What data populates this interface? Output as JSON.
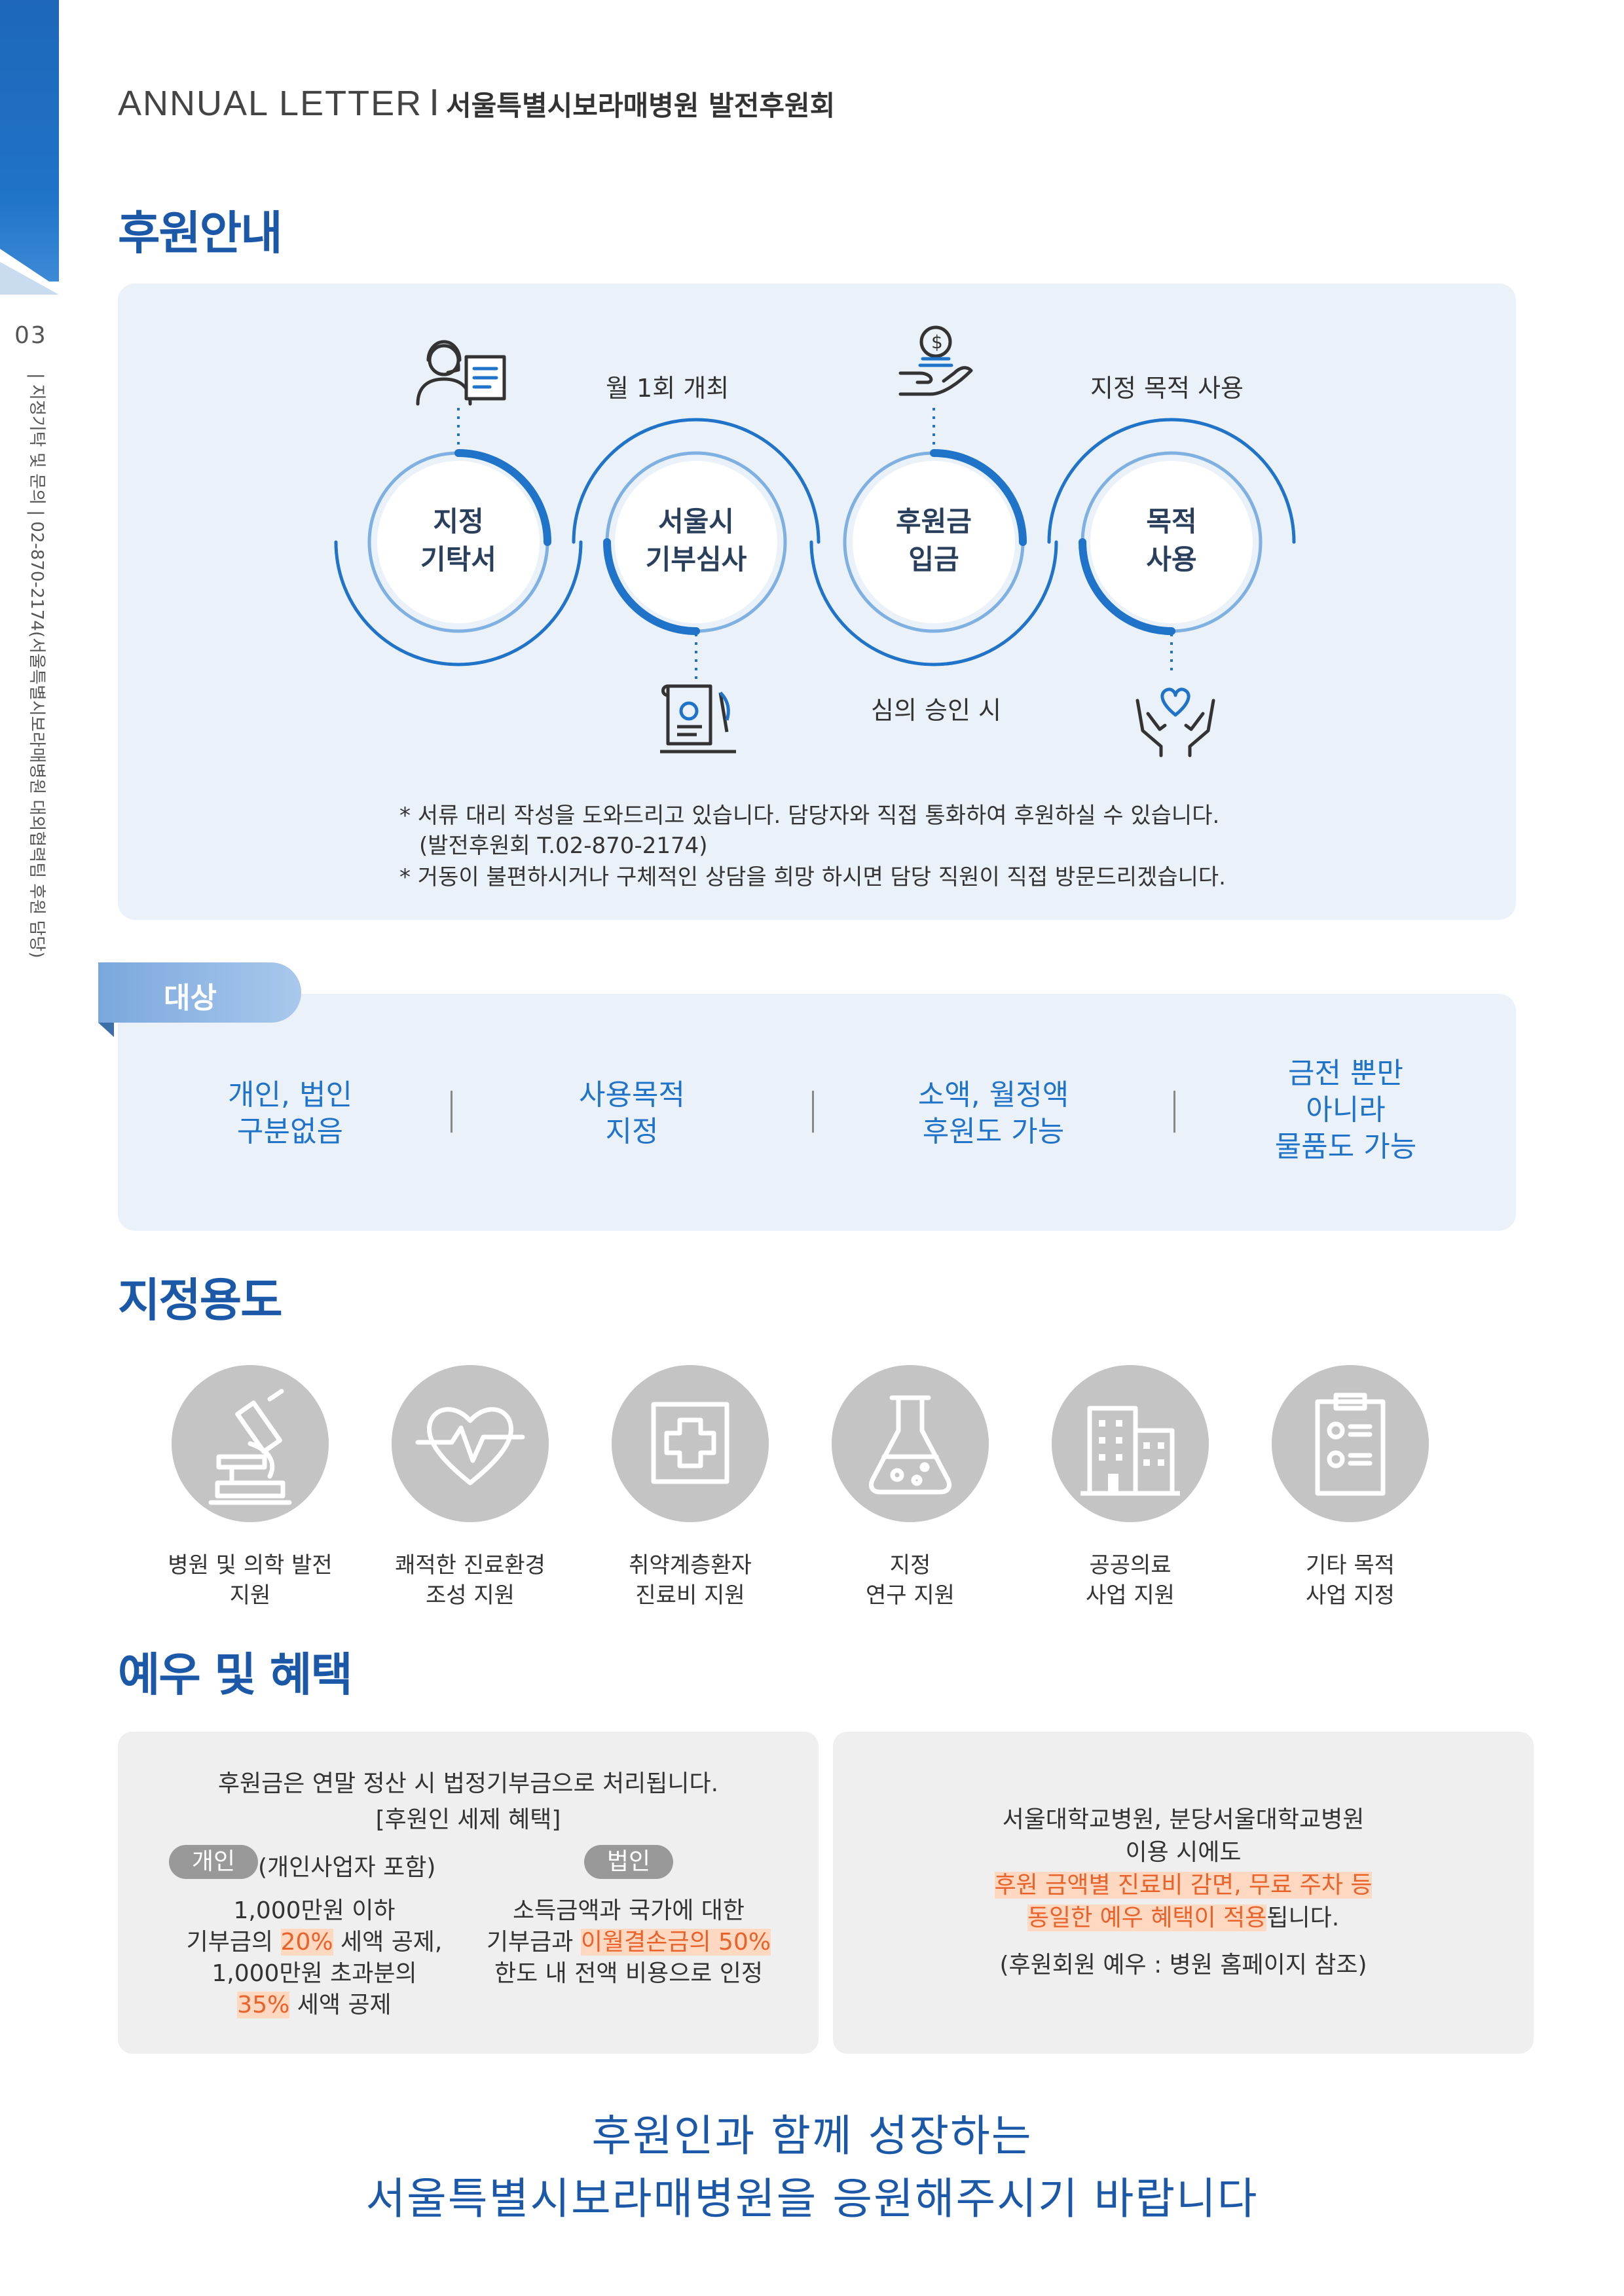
{
  "header": {
    "en": "ANNUAL LETTER",
    "sep": "I",
    "ko": "서울특별시보라매병원 발전후원회"
  },
  "side": {
    "page": "03",
    "contact": "| 지정기탁 및 문의 | 02-870-2174(서울특별시보라매병원 대외협력팀 후원 담당)"
  },
  "guide": {
    "title": "후원안내",
    "steps": [
      {
        "label": "지정\n기탁서",
        "icon": "consultant-icon"
      },
      {
        "label": "서울시\n기부심사",
        "icon": "certificate-scroll-icon"
      },
      {
        "label": "후원금\n입금",
        "icon": "coin-hand-icon"
      },
      {
        "label": "목적\n사용",
        "icon": "heart-hands-icon"
      }
    ],
    "captions": {
      "monthly": "월 1회 개최",
      "purpose": "지정 목적 사용",
      "approval": "심의 승인 시"
    },
    "notes": [
      "* 서류 대리 작성을 도와드리고 있습니다. 담당자와 직접 통화하여 후원하실 수 있습니다.",
      "(발전후원회 T.02-870-2174)",
      "* 거동이 불편하시거나 구체적인 상담을 희망 하시면 담당 직원이 직접 방문드리겠습니다."
    ]
  },
  "target": {
    "tag": "대상",
    "items": [
      "개인, 법인\n구분없음",
      "사용목적\n지정",
      "소액, 월정액\n후원도 가능",
      "금전 뿐만\n아니라\n물품도 가능"
    ]
  },
  "uses": {
    "title": "지정용도",
    "items": [
      {
        "label": "병원 및 의학 발전\n지원",
        "icon": "microscope-icon"
      },
      {
        "label": "쾌적한 진료환경\n조성  지원",
        "icon": "heartbeat-icon"
      },
      {
        "label": "취약계층환자\n진료비 지원",
        "icon": "medical-cross-icon"
      },
      {
        "label": "지정\n연구 지원",
        "icon": "flask-icon"
      },
      {
        "label": "공공의료\n사업 지원",
        "icon": "building-icon"
      },
      {
        "label": "기타 목적\n사업 지정",
        "icon": "clipboard-icon"
      }
    ]
  },
  "benefits": {
    "title": "예우 및 혜택",
    "tax": {
      "line1": "후원금은 연말 정산 시 법정기부금으로 처리됩니다.",
      "line2": "[후원인 세제 혜택]",
      "personal_pill": "개인",
      "personal_note": "(개인사업자 포함)",
      "corp_pill": "법인",
      "personal": {
        "l1": "1,000만원 이하",
        "l2a": "기부금의 ",
        "l2hl": "20%",
        "l2b": " 세액 공제,",
        "l3": "1,000만원 초과분의",
        "l4hl": "35%",
        "l4b": " 세액 공제"
      },
      "corp": {
        "l1": "소득금액과 국가에 대한",
        "l2a": "기부금과 ",
        "l2hl": "이월결손금의 50%",
        "l3": "한도 내 전액 비용으로 인정"
      }
    },
    "perks": {
      "l1": "서울대학교병원, 분당서울대학교병원",
      "l2": "이용 시에도",
      "l3hl": "후원 금액별 진료비 감면, 무료 주차 등",
      "l4hl": "동일한 예우 혜택이 적용",
      "l4b": "됩니다.",
      "l5": "(후원회원 예우 : 병원 홈페이지 참조)"
    }
  },
  "closing": {
    "l1": "후원인과 함께 성장하는",
    "l2": "서울특별시보라매병원을 응원해주시기 바랍니다"
  },
  "colors": {
    "primary": "#1b58a8",
    "accent_blue": "#1f73c9",
    "highlight": "#e8622a",
    "panel": "#eaf1f9",
    "gray_box": "#efefef"
  }
}
